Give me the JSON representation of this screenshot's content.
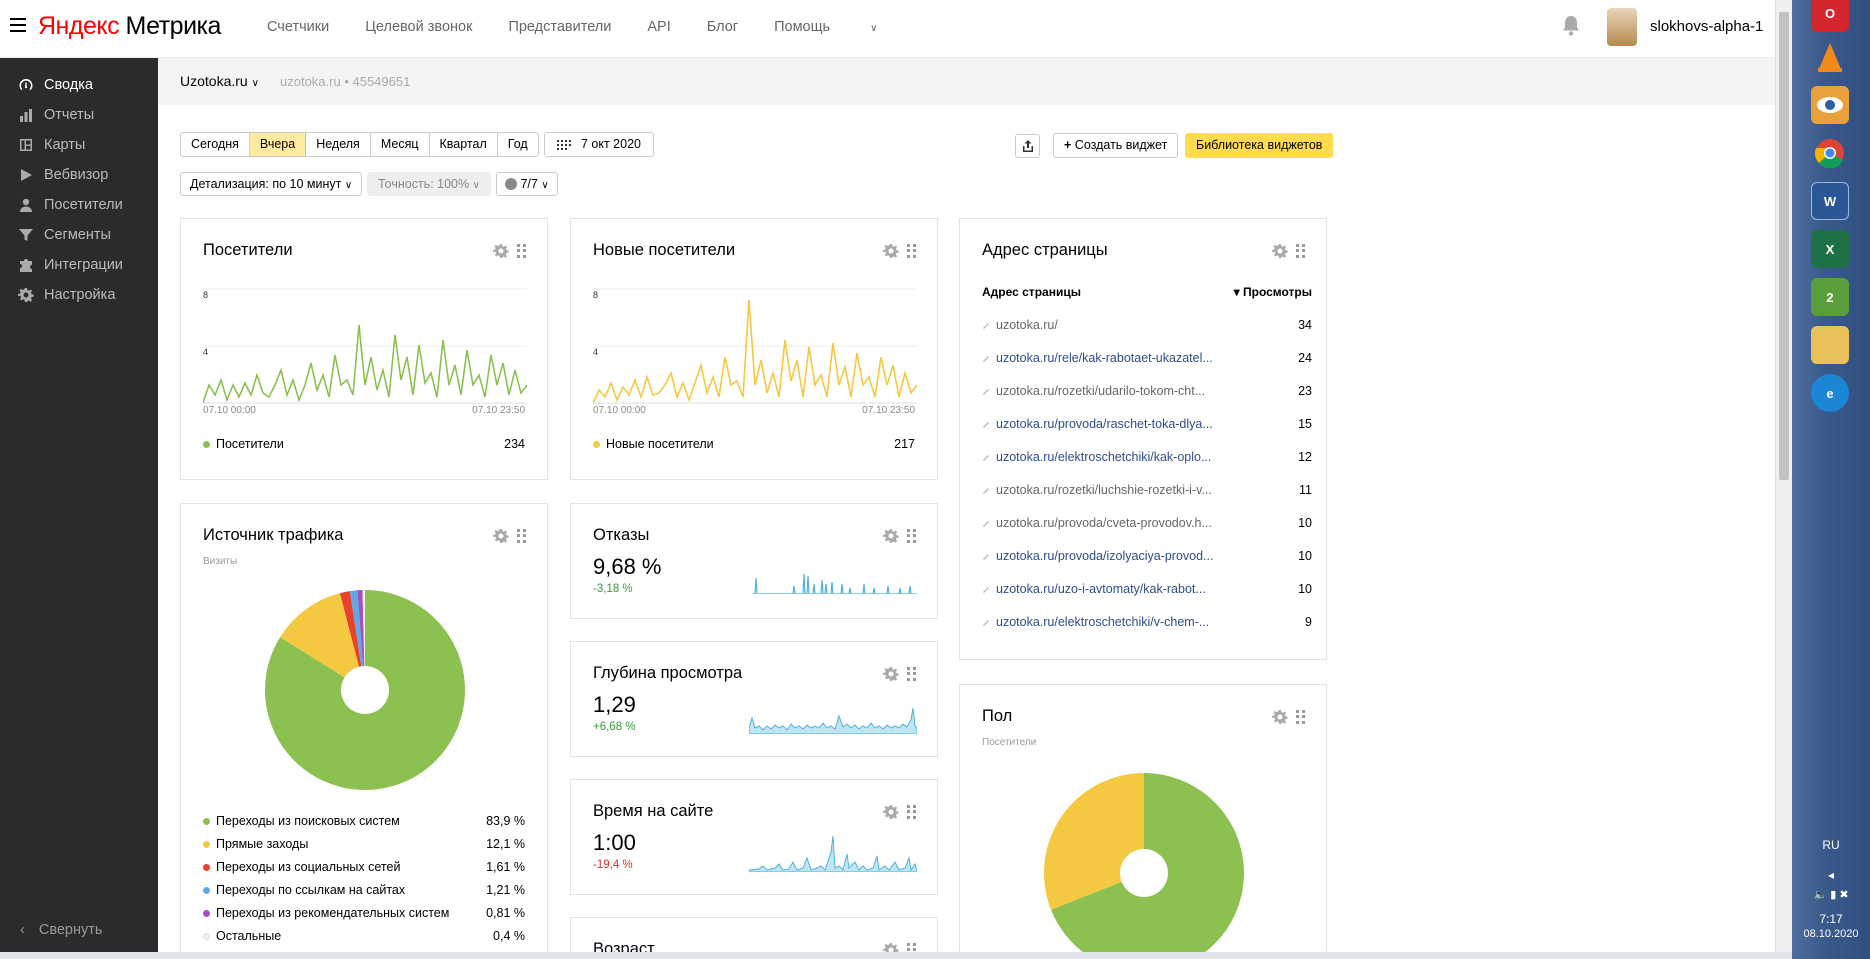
{
  "header": {
    "logo_prefix": "Яндекс",
    "logo_name": "Метрика",
    "nav": [
      "Счетчики",
      "Целевой звонок",
      "Представители",
      "API",
      "Блог",
      "Помощь"
    ],
    "username": "slokhovs-alpha-1"
  },
  "sidebar": {
    "items": [
      {
        "label": "Сводка",
        "icon": "dashboard-icon",
        "active": true
      },
      {
        "label": "Отчеты",
        "icon": "bar-chart-icon"
      },
      {
        "label": "Карты",
        "icon": "map-icon"
      },
      {
        "label": "Вебвизор",
        "icon": "play-icon"
      },
      {
        "label": "Посетители",
        "icon": "person-icon"
      },
      {
        "label": "Сегменты",
        "icon": "filter-icon"
      },
      {
        "label": "Интеграции",
        "icon": "puzzle-icon"
      },
      {
        "label": "Настройка",
        "icon": "gear-icon"
      }
    ],
    "collapse_label": "Свернуть"
  },
  "breadcrumb": {
    "site": "Uzotoka.ru",
    "meta": "uzotoka.ru • 45549651"
  },
  "controls": {
    "periods": [
      "Сегодня",
      "Вчера",
      "Неделя",
      "Месяц",
      "Квартал",
      "Год"
    ],
    "selected_period": "Вчера",
    "date": "7 окт 2020",
    "create_widget": "Создать виджет",
    "widget_library": "Библиотека виджетов",
    "detail": "Детализация: по 10 минут",
    "accuracy": "Точность: 100%",
    "segments": "7/7"
  },
  "widgets": {
    "visitors": {
      "title": "Посетители",
      "y_ticks": [
        "8",
        "4"
      ],
      "x_start": "07.10 00:00",
      "x_end": "07.10 23:50",
      "legend_label": "Посетители",
      "total": "234",
      "color": "#8cc152"
    },
    "new_visitors": {
      "title": "Новые посетители",
      "y_ticks": [
        "8",
        "4"
      ],
      "x_start": "07.10 00:00",
      "x_end": "07.10 23:50",
      "legend_label": "Новые посетители",
      "total": "217",
      "color": "#f5c842"
    },
    "pages": {
      "title": "Адрес страницы",
      "col_url": "Адрес страницы",
      "col_views": "▾ Просмотры",
      "rows": [
        {
          "url": "uzotoka.ru/",
          "views": "34",
          "grey": true
        },
        {
          "url": "uzotoka.ru/rele/kak-rabotaet-ukazatel...",
          "views": "24"
        },
        {
          "url": "uzotoka.ru/rozetki/udarilo-tokom-cht...",
          "views": "23",
          "grey": true
        },
        {
          "url": "uzotoka.ru/provoda/raschet-toka-dlya...",
          "views": "15"
        },
        {
          "url": "uzotoka.ru/elektroschetchiki/kak-oplo...",
          "views": "12"
        },
        {
          "url": "uzotoka.ru/rozetki/luchshie-rozetki-i-v...",
          "views": "11",
          "grey": true
        },
        {
          "url": "uzotoka.ru/provoda/cveta-provodov.h...",
          "views": "10",
          "grey": true
        },
        {
          "url": "uzotoka.ru/provoda/izolyaciya-provod...",
          "views": "10"
        },
        {
          "url": "uzotoka.ru/uzo-i-avtomaty/kak-rabot...",
          "views": "10"
        },
        {
          "url": "uzotoka.ru/elektroschetchiki/v-chem-...",
          "views": "9"
        }
      ]
    },
    "traffic": {
      "title": "Источник трафика",
      "subtitle": "Визиты",
      "sources": [
        {
          "label": "Переходы из поисковых систем",
          "value": "83,9 %",
          "pct": 83.9,
          "color": "#8cc152"
        },
        {
          "label": "Прямые заходы",
          "value": "12,1 %",
          "pct": 12.1,
          "color": "#f5c842"
        },
        {
          "label": "Переходы из социальных сетей",
          "value": "1,61 %",
          "pct": 1.61,
          "color": "#e8412c"
        },
        {
          "label": "Переходы по ссылкам на сайтах",
          "value": "1,21 %",
          "pct": 1.21,
          "color": "#62a8e5"
        },
        {
          "label": "Переходы из рекомендательных систем",
          "value": "0,81 %",
          "pct": 0.81,
          "color": "#a34fbf"
        },
        {
          "label": "Остальные",
          "value": "0,4 %",
          "pct": 0.4,
          "color": "#eeeeee"
        }
      ]
    },
    "bounces": {
      "title": "Отказы",
      "value": "9,68 %",
      "delta": "-3,18 %",
      "delta_color": "#3a9a3a"
    },
    "depth": {
      "title": "Глубина просмотра",
      "value": "1,29",
      "delta": "+6,68 %",
      "delta_color": "#3a9a3a"
    },
    "time": {
      "title": "Время на сайте",
      "value": "1:00",
      "delta": "-19,4 %",
      "delta_color": "#d43030"
    },
    "age": {
      "title": "Возраст"
    },
    "gender": {
      "title": "Пол",
      "subtitle": "Посетители",
      "slices": [
        {
          "pct": 69,
          "color": "#8cc152"
        },
        {
          "pct": 31,
          "color": "#f5c842"
        }
      ]
    }
  },
  "taskbar": {
    "lang": "RU",
    "time": "7:17",
    "date": "08.10.2020"
  }
}
